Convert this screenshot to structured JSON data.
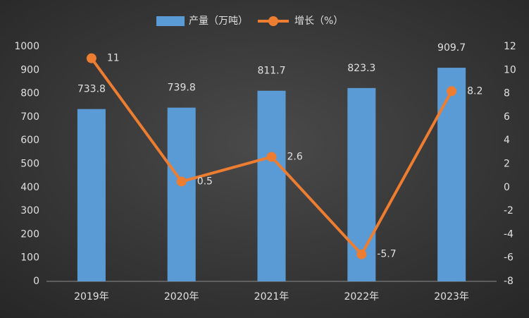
{
  "chart_data": {
    "type": "combo",
    "categories": [
      "2019年",
      "2020年",
      "2021年",
      "2022年",
      "2023年"
    ],
    "series": [
      {
        "name": "产量（万吨）",
        "type": "bar",
        "color": "#5b9bd5",
        "values": [
          733.8,
          739.8,
          811.7,
          823.3,
          909.7
        ]
      },
      {
        "name": "增长（%）",
        "type": "line",
        "axis": "y2",
        "color": "#ed7d31",
        "values": [
          11,
          0.5,
          2.6,
          -5.7,
          8.2
        ]
      }
    ],
    "ylim": [
      0,
      1000
    ],
    "yticks": [
      0,
      100,
      200,
      300,
      400,
      500,
      600,
      700,
      800,
      900,
      1000
    ],
    "y2lim": [
      -8,
      12
    ],
    "y2ticks": [
      -8,
      -6,
      -4,
      -2,
      0,
      2,
      4,
      6,
      8,
      10,
      12
    ],
    "grid": false
  }
}
